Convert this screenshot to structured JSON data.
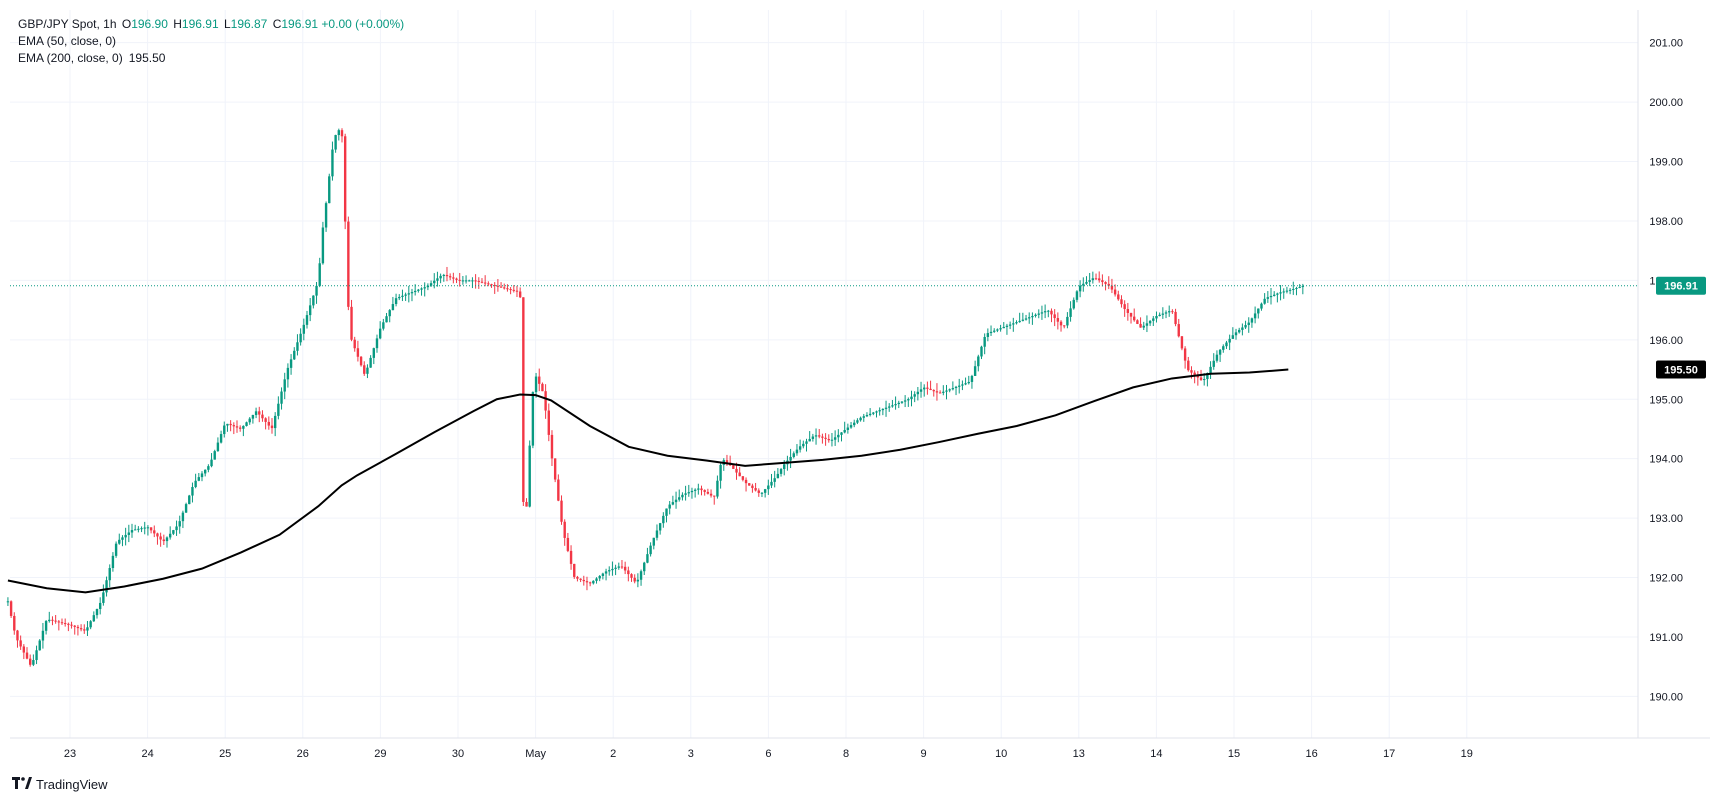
{
  "legend": {
    "symbol": "GBP/JPY Spot, 1h",
    "o_label": "O",
    "o_value": "196.90",
    "h_label": "H",
    "h_value": "196.91",
    "l_label": "L",
    "l_value": "196.87",
    "c_label": "C",
    "c_value": "196.91",
    "change": "+0.00 (+0.00%)",
    "ema50": "EMA (50, close, 0)",
    "ema200": "EMA (200, close, 0)",
    "ema200_value": "195.50"
  },
  "brand": {
    "name": "TradingView",
    "icon": "tradingview-logo-icon"
  },
  "colors": {
    "up": "#089981",
    "down": "#f23645",
    "ema": "#000000",
    "price_line": "#089981",
    "grid": "#f0f3fa"
  },
  "chart_data": {
    "type": "line",
    "title": "GBP/JPY Spot, 1h",
    "xlabel": "",
    "ylabel": "",
    "ylim": [
      189.3,
      201.55
    ],
    "grid": true,
    "y_ticks": [
      "190.00",
      "191.00",
      "192.00",
      "193.00",
      "194.00",
      "195.00",
      "196.00",
      "197.00",
      "198.00",
      "199.00",
      "200.00",
      "201.00"
    ],
    "x_ticks": [
      "23",
      "24",
      "25",
      "26",
      "29",
      "30",
      "May",
      "2",
      "3",
      "6",
      "8",
      "9",
      "10",
      "13",
      "14",
      "15",
      "16",
      "17",
      "19"
    ],
    "last_price": "196.91",
    "ema200_label": "195.50",
    "series": [
      {
        "name": "EMA (200, close, 0)",
        "x": [
          0,
          0.5,
          1.0,
          1.5,
          2.0,
          2.5,
          3.0,
          3.5,
          4.0,
          4.3,
          4.5,
          5.0,
          5.5,
          6.0,
          6.3,
          6.6,
          6.8,
          7.0,
          7.5,
          8.0,
          8.5,
          9.0,
          9.5,
          10.0,
          10.5,
          11.0,
          11.5,
          12.0,
          12.5,
          13.0,
          13.5,
          14.0,
          14.5,
          15.0,
          15.5,
          16.0,
          16.5
        ],
        "values": [
          191.95,
          191.82,
          191.75,
          191.85,
          191.98,
          192.15,
          192.42,
          192.72,
          193.2,
          193.55,
          193.72,
          194.08,
          194.45,
          194.8,
          195.0,
          195.08,
          195.07,
          194.98,
          194.55,
          194.2,
          194.05,
          193.97,
          193.88,
          193.93,
          193.98,
          194.05,
          194.15,
          194.28,
          194.42,
          194.55,
          194.73,
          194.97,
          195.2,
          195.35,
          195.43,
          195.45,
          195.5
        ]
      }
    ],
    "price_path": {
      "x": [
        0,
        0.1,
        0.3,
        0.5,
        0.8,
        1.0,
        1.2,
        1.4,
        1.6,
        1.8,
        2.0,
        2.2,
        2.4,
        2.6,
        2.8,
        3.0,
        3.2,
        3.4,
        3.6,
        3.8,
        4.0,
        4.05,
        4.1,
        4.2,
        4.3,
        4.4,
        4.6,
        4.8,
        5.0,
        5.2,
        5.4,
        5.6,
        5.8,
        6.0,
        6.3,
        6.6,
        6.65,
        6.7,
        6.75,
        6.8,
        6.9,
        7.0,
        7.15,
        7.3,
        7.5,
        7.7,
        7.9,
        8.1,
        8.3,
        8.5,
        8.7,
        8.9,
        9.1,
        9.2,
        9.3,
        9.5,
        9.7,
        9.9,
        10.0,
        10.2,
        10.4,
        10.6,
        10.8,
        11.0,
        11.2,
        11.4,
        11.6,
        11.8,
        12.0,
        12.2,
        12.4,
        12.6,
        12.8,
        13.0,
        13.2,
        13.4,
        13.6,
        13.8,
        14.0,
        14.2,
        14.4,
        14.6,
        14.8,
        15.0,
        15.2,
        15.4,
        15.6,
        15.8,
        16.0,
        16.2,
        16.4,
        16.55,
        16.7
      ],
      "values": [
        191.6,
        191.0,
        190.5,
        191.3,
        191.2,
        191.1,
        191.6,
        192.6,
        192.8,
        192.85,
        192.6,
        192.9,
        193.6,
        193.9,
        194.6,
        194.5,
        194.8,
        194.5,
        195.5,
        196.2,
        197.0,
        197.8,
        198.3,
        199.4,
        199.6,
        196.1,
        195.4,
        196.2,
        196.7,
        196.8,
        196.9,
        197.1,
        197.0,
        197.0,
        196.9,
        196.8,
        192.6,
        193.5,
        195.0,
        195.4,
        195.1,
        194.1,
        192.8,
        192.0,
        191.9,
        192.1,
        192.2,
        191.9,
        192.6,
        193.2,
        193.4,
        193.5,
        193.35,
        194.0,
        193.9,
        193.6,
        193.4,
        193.7,
        193.9,
        194.2,
        194.4,
        194.3,
        194.5,
        194.7,
        194.8,
        194.9,
        195.0,
        195.2,
        195.1,
        195.2,
        195.3,
        196.1,
        196.2,
        196.3,
        196.4,
        196.5,
        196.2,
        196.9,
        197.05,
        196.9,
        196.5,
        196.2,
        196.4,
        196.5,
        195.5,
        195.3,
        195.8,
        196.1,
        196.3,
        196.7,
        196.8,
        196.85,
        196.91
      ]
    }
  }
}
